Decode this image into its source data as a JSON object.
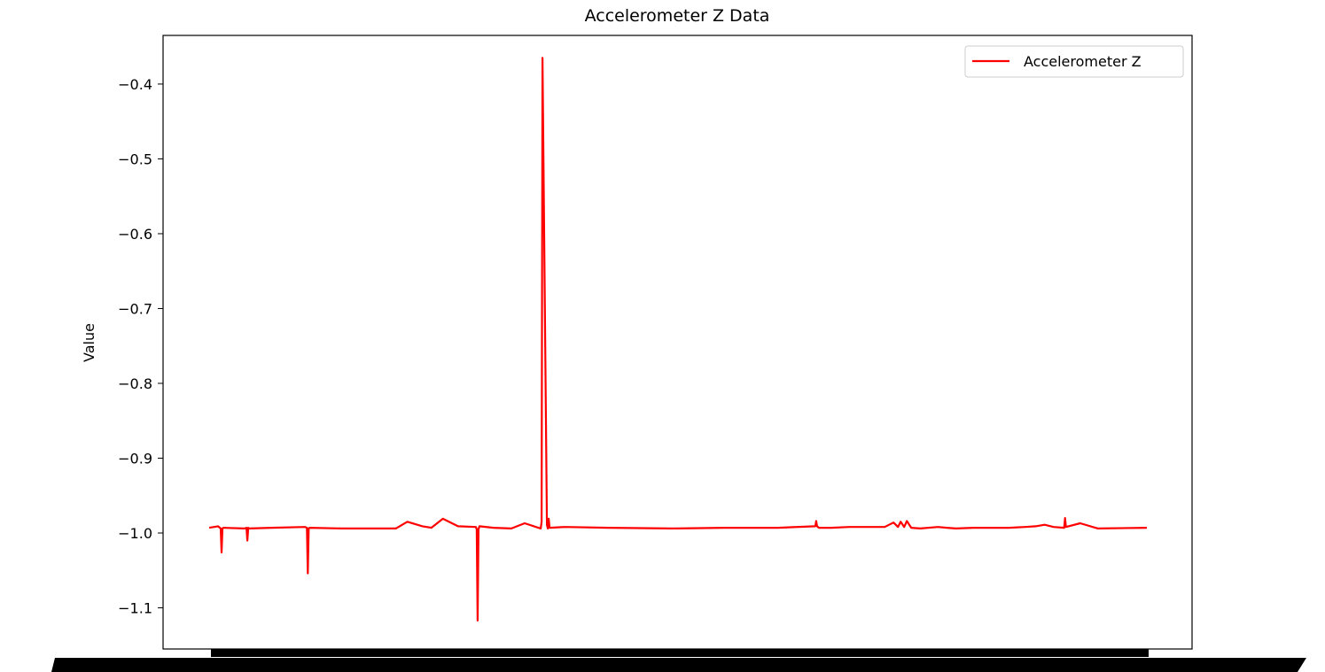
{
  "chart_data": {
    "type": "line",
    "title": "Accelerometer Z Data",
    "xlabel": "",
    "ylabel": "Value",
    "ylim": [
      -1.155,
      -0.335
    ],
    "yticks": [
      -0.4,
      -0.5,
      -0.6,
      -0.7,
      -0.8,
      -0.9,
      -1.0,
      -1.1
    ],
    "ytick_labels": [
      "−0.4",
      "−0.5",
      "−0.6",
      "−0.7",
      "−0.8",
      "−0.9",
      "−1.0",
      "−1.1"
    ],
    "grid": false,
    "legend_position": "top-right",
    "x_tick_labels_note": "x-axis tick labels are unreadable (overlapping dense labels rendered as a solid black band)",
    "series": [
      {
        "name": "Accelerometer Z",
        "color": "#ff0000",
        "x": [
          0,
          10,
          13,
          14,
          15,
          16,
          40,
          42,
          43,
          44,
          45,
          70,
          108,
          110,
          111,
          112,
          113,
          150,
          210,
          223,
          240,
          250,
          263,
          280,
          300,
          301,
          302,
          303,
          304,
          320,
          340,
          355,
          373,
          374,
          375,
          380,
          381,
          382,
          383,
          400,
          450,
          520,
          580,
          640,
          682,
          683,
          684,
          686,
          700,
          720,
          760,
          770,
          775,
          778,
          782,
          785,
          790,
          800,
          820,
          830,
          840,
          860,
          900,
          918,
          930,
          940,
          950,
          962,
          963,
          964,
          980,
          1000,
          1055
        ],
        "y": [
          -0.993,
          -0.991,
          -0.994,
          -1.026,
          -0.994,
          -0.993,
          -0.994,
          -0.993,
          -1.01,
          -0.993,
          -0.994,
          -0.993,
          -0.992,
          -0.993,
          -1.054,
          -0.994,
          -0.993,
          -0.994,
          -0.994,
          -0.985,
          -0.991,
          -0.993,
          -0.981,
          -0.991,
          -0.992,
          -0.995,
          -1.117,
          -0.995,
          -0.991,
          -0.993,
          -0.994,
          -0.987,
          -0.994,
          -0.985,
          -0.365,
          -0.989,
          -0.994,
          -0.981,
          -0.993,
          -0.992,
          -0.993,
          -0.994,
          -0.993,
          -0.993,
          -0.991,
          -0.984,
          -0.991,
          -0.993,
          -0.993,
          -0.992,
          -0.992,
          -0.986,
          -0.992,
          -0.985,
          -0.992,
          -0.984,
          -0.993,
          -0.994,
          -0.992,
          -0.993,
          -0.994,
          -0.993,
          -0.993,
          -0.992,
          -0.991,
          -0.989,
          -0.992,
          -0.993,
          -0.98,
          -0.992,
          -0.987,
          -0.994,
          -0.993
        ]
      }
    ]
  }
}
